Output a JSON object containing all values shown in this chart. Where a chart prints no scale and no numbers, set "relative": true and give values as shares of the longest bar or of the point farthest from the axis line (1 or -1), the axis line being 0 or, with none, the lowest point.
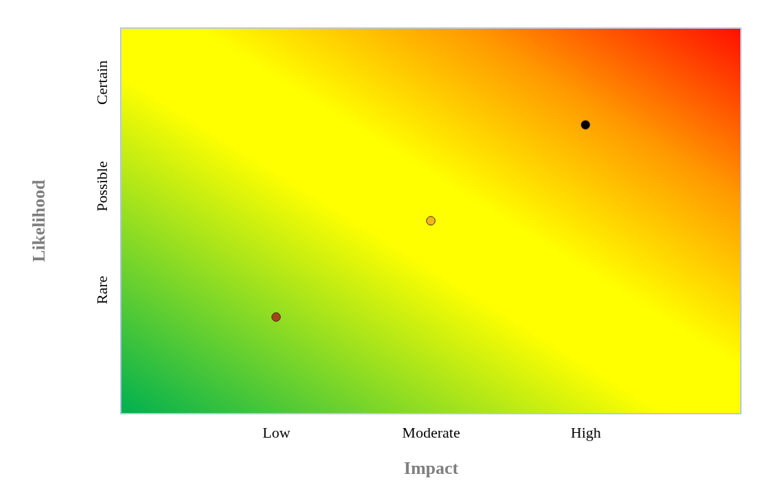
{
  "chart_data": {
    "type": "scatter",
    "xlabel": "Impact",
    "ylabel": "Likelihood",
    "categories": [
      "Low",
      "Moderate",
      "High"
    ],
    "values": [
      0.333,
      0.667,
      1
    ],
    "relative": true,
    "colors": [
      "#a5441a",
      "#f5b51c",
      "#000000"
    ],
    "annotations": [
      "Rare",
      "Possible",
      "Certain"
    ],
    "marker": "circle",
    "legend": false
  }
}
